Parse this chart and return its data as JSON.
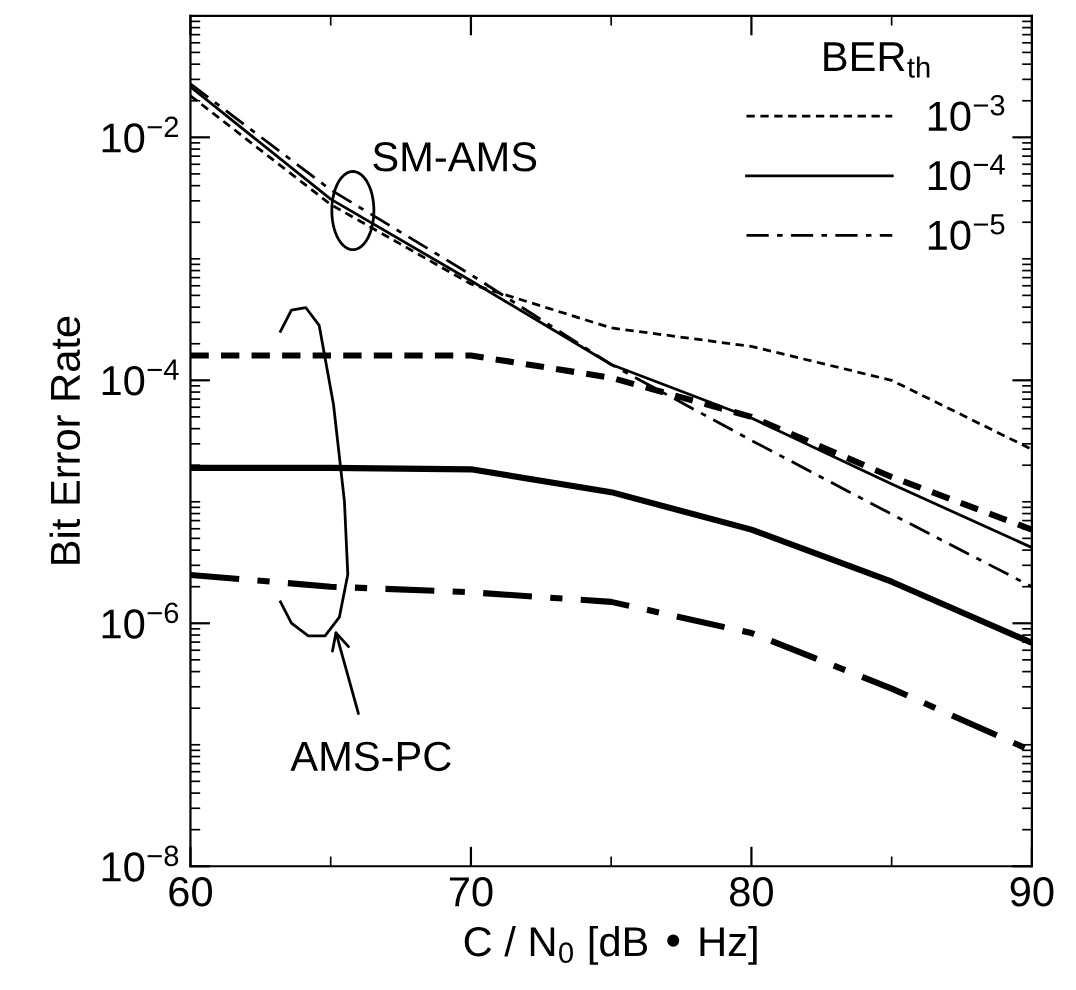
{
  "chart_data": {
    "type": "line",
    "xlabel": "C / N$_{0}$ [dB • Hz]",
    "ylabel": "Bit Error Rate",
    "legend_title": "BER$_{th}$",
    "legend": "top right",
    "log": "y",
    "grid": false,
    "marker": "none",
    "xlim": [
      60,
      90
    ],
    "xticks": [
      60,
      70,
      80,
      90
    ],
    "ylim": [
      1e-08,
      0.1
    ],
    "yticks": [
      {
        "value": 1e-08,
        "label": "10$^{−8}$"
      },
      {
        "value": 1e-06,
        "label": "10$^{−6}$"
      },
      {
        "value": 0.0001,
        "label": "10$^{−4}$"
      },
      {
        "value": 0.01,
        "label": "10$^{−2}$"
      }
    ],
    "series": [
      {
        "name": "10$^{−3}$",
        "color": "#000000",
        "line_style": "dotted",
        "x": [
          60,
          65,
          70,
          75,
          80,
          85,
          90
        ],
        "values": [
          0.022,
          0.0028,
          0.00062,
          0.00027,
          0.00019,
          0.0001,
          2.7e-05
        ]
      },
      {
        "name": "10$^{−4}$",
        "color": "#000000",
        "line_style": "solid",
        "x": [
          60,
          65,
          70,
          75,
          80,
          85,
          90
        ],
        "values": [
          0.026,
          0.0031,
          0.00066,
          0.000135,
          4.9e-05,
          1.4e-05,
          4.2e-06
        ]
      },
      {
        "name": "10$^{−5}$",
        "color": "#000000",
        "line_style": "dashdot",
        "x": [
          60,
          65,
          70,
          75,
          80,
          85,
          90
        ],
        "values": [
          0.0275,
          0.0037,
          0.00074,
          0.000135,
          3.2e-05,
          7.9e-06,
          2e-06
        ]
      },
      {
        "color": "#000000",
        "line_style": "dotted",
        "x": [
          60,
          65,
          70,
          75,
          80,
          85,
          90
        ],
        "values": [
          0.00016,
          0.00016,
          0.00016,
          0.000105,
          5e-05,
          1.6e-05,
          5.9e-06
        ]
      },
      {
        "color": "#000000",
        "line_style": "solid",
        "x": [
          60,
          65,
          70,
          75,
          80,
          85,
          90
        ],
        "values": [
          1.9e-05,
          1.9e-05,
          1.85e-05,
          1.2e-05,
          5.9e-06,
          2.2e-06,
          6.9e-07
        ]
      },
      {
        "color": "#000000",
        "line_style": "dashdot",
        "x": [
          60,
          65,
          70,
          75,
          80,
          85,
          90
        ],
        "values": [
          2.5e-06,
          2e-06,
          1.8e-06,
          1.5e-06,
          8.3e-07,
          2.9e-07,
          8.9e-08
        ]
      }
    ],
    "annotations": [
      "SM-AMS",
      "AMS-PC"
    ]
  }
}
